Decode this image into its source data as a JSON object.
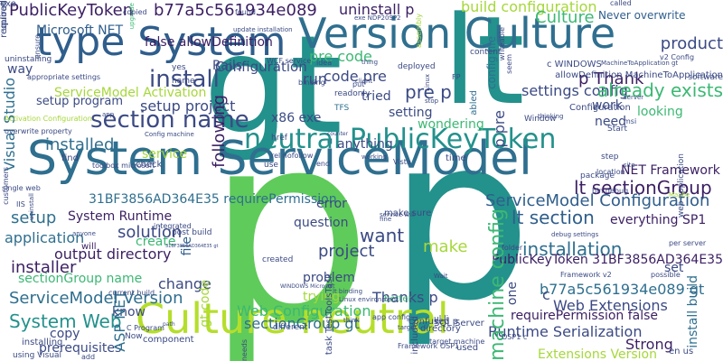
{
  "palette": {
    "background": "#ffffff",
    "dark": "#3b1f63",
    "blue": "#2f5e8c",
    "teal": "#23918c",
    "green": "#3cb874",
    "lime": "#a6d73b",
    "yellow": "#d8e219",
    "navy": "#2b3a72"
  },
  "words": [
    {
      "text": "p",
      "color": "#5fcb5a",
      "vertical": false
    },
    {
      "text": "p",
      "color": "#23918c",
      "vertical": false
    },
    {
      "text": "gt",
      "color": "#23918c",
      "vertical": false
    },
    {
      "text": "lt",
      "color": "#23918c",
      "vertical": false
    },
    {
      "text": "System ServiceModel",
      "color": "#2f6f8f",
      "vertical": false
    },
    {
      "text": "type System",
      "color": "#2f5e8c",
      "vertical": false
    },
    {
      "text": "Version Culture",
      "color": "#2f6f8f",
      "vertical": false
    },
    {
      "text": "Culture neutral",
      "color": "#b5de2b",
      "vertical": false
    },
    {
      "text": "neutral PublicKeyToken",
      "color": "#23918c",
      "vertical": false
    },
    {
      "text": "section name",
      "color": "#3b4a84",
      "vertical": false
    },
    {
      "text": "PublicKeyToken",
      "color": "#3b1f63",
      "vertical": false
    },
    {
      "text": "b77a5c561934e089",
      "color": "#3b1f63",
      "vertical": false
    },
    {
      "text": "uninstall p",
      "color": "#3b1f63",
      "vertical": false
    },
    {
      "text": "Microsoft NET",
      "color": "#2f5e8c",
      "vertical": false
    },
    {
      "text": "false allowDefinition",
      "color": "#3b1f63",
      "vertical": false
    },
    {
      "text": "build configuration",
      "color": "#a6d73b",
      "vertical": false
    },
    {
      "text": "Culture",
      "color": "#3cb874",
      "vertical": false
    },
    {
      "text": "Never overwrite",
      "color": "#2f5e8c",
      "vertical": false
    },
    {
      "text": "install",
      "color": "#3b4a84",
      "vertical": false
    },
    {
      "text": "Configuration",
      "color": "#3b4a84",
      "vertical": false
    },
    {
      "text": "pre code",
      "color": "#3cb874",
      "vertical": false
    },
    {
      "text": "code pre",
      "color": "#3b4a84",
      "vertical": false
    },
    {
      "text": "run",
      "color": "#3b4a84",
      "vertical": false
    },
    {
      "text": "pre p",
      "color": "#3b4a84",
      "vertical": false
    },
    {
      "text": "p Thank",
      "color": "#3b1f63",
      "vertical": false
    },
    {
      "text": "settings config",
      "color": "#3b4a84",
      "vertical": false
    },
    {
      "text": "setup project",
      "color": "#3b4a84",
      "vertical": false
    },
    {
      "text": "setup program",
      "color": "#3b4a84",
      "vertical": false
    },
    {
      "text": "ServiceModel Activation",
      "color": "#a6d73b",
      "vertical": false
    },
    {
      "text": "installed",
      "color": "#2f6f8f",
      "vertical": false
    },
    {
      "text": "service",
      "color": "#a6d73b",
      "vertical": false
    },
    {
      "text": "setting",
      "color": "#3b4a84",
      "vertical": false
    },
    {
      "text": "work",
      "color": "#3b4a84",
      "vertical": false
    },
    {
      "text": "looking",
      "color": "#3cb874",
      "vertical": false
    },
    {
      "text": "need",
      "color": "#3b4a84",
      "vertical": false
    },
    {
      "text": "wondering",
      "color": "#3cb874",
      "vertical": false
    },
    {
      "text": "NET Framework",
      "color": "#3b1f63",
      "vertical": false
    },
    {
      "text": "lt sectionGroup",
      "color": "#3b1f63",
      "vertical": false
    },
    {
      "text": "31BF3856AD364E35 requirePermission",
      "color": "#2f6f8f",
      "vertical": false
    },
    {
      "text": "ServiceModel Configuration",
      "color": "#2f5e8c",
      "vertical": false
    },
    {
      "text": "lt section",
      "color": "#2f5e8c",
      "vertical": false
    },
    {
      "text": "error",
      "color": "#3b4a84",
      "vertical": false
    },
    {
      "text": "setup",
      "color": "#2f6f8f",
      "vertical": false
    },
    {
      "text": "System Runtime",
      "color": "#3b1f63",
      "vertical": false
    },
    {
      "text": "everything SP1",
      "color": "#3b1f63",
      "vertical": false
    },
    {
      "text": "application",
      "color": "#2f6f8f",
      "vertical": false
    },
    {
      "text": "solution",
      "color": "#3b4a84",
      "vertical": false
    },
    {
      "text": "create",
      "color": "#3cb874",
      "vertical": false
    },
    {
      "text": "want",
      "color": "#3b4a84",
      "vertical": false
    },
    {
      "text": "make",
      "color": "#a6d73b",
      "vertical": false
    },
    {
      "text": "installation",
      "color": "#2f6f8f",
      "vertical": false
    },
    {
      "text": "output directory",
      "color": "#3b1f63",
      "vertical": false
    },
    {
      "text": "installer",
      "color": "#3b1f63",
      "vertical": false
    },
    {
      "text": "project",
      "color": "#3b4a84",
      "vertical": false
    },
    {
      "text": "sectionGroup name",
      "color": "#3cb874",
      "vertical": false
    },
    {
      "text": "PublicKeyToken 31BF3856AD364E35",
      "color": "#3b1f63",
      "vertical": false
    },
    {
      "text": "ServiceModel Version",
      "color": "#2f6f8f",
      "vertical": false
    },
    {
      "text": "b77a5c561934e089 gt",
      "color": "#2f6f8f",
      "vertical": false
    },
    {
      "text": "System Web",
      "color": "#23918c",
      "vertical": false
    },
    {
      "text": "change",
      "color": "#3b4a84",
      "vertical": false
    },
    {
      "text": "problem",
      "color": "#3b4a84",
      "vertical": false
    },
    {
      "text": "Thanks p",
      "color": "#3b4a84",
      "vertical": false
    },
    {
      "text": "trying",
      "color": "#a6d73b",
      "vertical": false
    },
    {
      "text": "Web Extensions",
      "color": "#3b4a84",
      "vertical": false
    },
    {
      "text": "Web Configuration",
      "color": "#3cb874",
      "vertical": false
    },
    {
      "text": "sectionGroup gt",
      "color": "#2f6f8f",
      "vertical": false
    },
    {
      "text": "requirePermission false",
      "color": "#3b1f63",
      "vertical": false
    },
    {
      "text": "Runtime Serialization",
      "color": "#3b4a84",
      "vertical": false
    },
    {
      "text": "Strong",
      "color": "#3b1f63",
      "vertical": false
    },
    {
      "text": "prerequisites",
      "color": "#3b4a84",
      "vertical": false
    },
    {
      "text": "Extensions Version",
      "color": "#a6d73b",
      "vertical": false
    },
    {
      "text": "copy",
      "color": "#3b4a84",
      "vertical": false
    },
    {
      "text": "component",
      "color": "#3b4a84",
      "vertical": false
    },
    {
      "text": "SQL Server",
      "color": "#3b4a84",
      "vertical": false
    },
    {
      "text": "know",
      "color": "#3b4a84",
      "vertical": false
    },
    {
      "text": "will",
      "color": "#3b1f63",
      "vertical": false
    },
    {
      "text": "find",
      "color": "#3b4a84",
      "vertical": false
    },
    {
      "text": "check",
      "color": "#3b4a84",
      "vertical": false
    },
    {
      "text": "question",
      "color": "#3b4a84",
      "vertical": false
    },
    {
      "text": "make sure",
      "color": "#3b4a84",
      "vertical": false
    },
    {
      "text": "anything",
      "color": "#3b4a84",
      "vertical": false
    },
    {
      "text": "x86 exe",
      "color": "#3b4a84",
      "vertical": false
    },
    {
      "text": "TFS",
      "color": "#2f6f8f",
      "vertical": false
    },
    {
      "text": "tried",
      "color": "#3b4a84",
      "vertical": false
    },
    {
      "text": "software",
      "color": "#3b4a84",
      "vertical": false
    },
    {
      "text": "better",
      "color": "#3cb874",
      "vertical": false
    },
    {
      "text": "Rails",
      "color": "#3b4a84",
      "vertical": false
    },
    {
      "text": "deployed",
      "color": "#3b4a84",
      "vertical": false
    },
    {
      "text": "Configuration",
      "color": "#3b4a84",
      "vertical": false
    },
    {
      "text": "product",
      "color": "#3b4a84",
      "vertical": false
    },
    {
      "text": "already exists",
      "color": "#3cb874",
      "vertical": false
    },
    {
      "text": "config file",
      "color": "#2f6f8f",
      "vertical": true
    },
    {
      "text": "Visual Studio",
      "color": "#2f6f8f",
      "vertical": true
    },
    {
      "text": "machine config",
      "color": "#3cb874",
      "vertical": true
    },
    {
      "text": "following",
      "color": "#3b1f63",
      "vertical": true
    },
    {
      "text": "file",
      "color": "#2f5e8c",
      "vertical": true
    },
    {
      "text": "gt code",
      "color": "#a6d73b",
      "vertical": true
    },
    {
      "text": "ASP NET",
      "color": "#2f6f8f",
      "vertical": true
    },
    {
      "text": "p pre",
      "color": "#3b4a84",
      "vertical": true
    },
    {
      "text": "one",
      "color": "#3b4a84",
      "vertical": true
    },
    {
      "text": "c",
      "color": "#3b4a84",
      "vertical": false
    },
    {
      "text": "way",
      "color": "#3b4a84",
      "vertical": false
    },
    {
      "text": "set",
      "color": "#3b4a84",
      "vertical": false
    },
    {
      "text": "install build",
      "color": "#2f6f8f",
      "vertical": true
    },
    {
      "text": "abled",
      "color": "#2f6f8f",
      "vertical": true
    },
    {
      "text": "included",
      "color": "#3b4a84",
      "vertical": true
    },
    {
      "text": "upgrade",
      "color": "#3cb874",
      "vertical": true
    },
    {
      "text": "assembly",
      "color": "#a6d73b",
      "vertical": true
    },
    {
      "text": "called",
      "color": "#3b4a84",
      "vertical": false
    },
    {
      "text": "exe NDP20SP2",
      "color": "#3b4a84",
      "vertical": false
    },
    {
      "text": "update installation",
      "color": "#3b4a84",
      "vertical": false
    },
    {
      "text": "service will",
      "color": "#3b4a84",
      "vertical": false
    },
    {
      "text": "debug settings",
      "color": "#3b4a84",
      "vertical": false
    },
    {
      "text": "MachineToApplication gt",
      "color": "#3b4a84",
      "vertical": false
    },
    {
      "text": "allowDefinition MachineToApplication",
      "color": "#3b4a84",
      "vertical": false
    },
    {
      "text": "appropriate settings",
      "color": "#3b4a84",
      "vertical": false
    },
    {
      "text": "Activation Configuration",
      "color": "#a6d73b",
      "vertical": false
    },
    {
      "text": "overwrite property",
      "color": "#3b4a84",
      "vertical": false
    },
    {
      "text": "Config machine",
      "color": "#3b4a84",
      "vertical": false
    },
    {
      "text": "Framework v2",
      "color": "#3b4a84",
      "vertical": false
    },
    {
      "text": "per server",
      "color": "#3b4a84",
      "vertical": false
    },
    {
      "text": "current build",
      "color": "#3b4a84",
      "vertical": false
    },
    {
      "text": "31BF3856AD364E35 gt",
      "color": "#3b4a84",
      "vertical": false
    },
    {
      "text": "lt binding",
      "color": "#3b4a84",
      "vertical": false
    },
    {
      "text": "WINDOWS Microsoft",
      "color": "#3b4a84",
      "vertical": false
    },
    {
      "text": "Linux environment",
      "color": "#3b4a84",
      "vertical": false
    },
    {
      "text": "c WINDOWS",
      "color": "#3b4a84",
      "vertical": false
    },
    {
      "text": "WCF service",
      "color": "#3b4a84",
      "vertical": false
    },
    {
      "text": "web application",
      "color": "#3b4a84",
      "vertical": true
    },
    {
      "text": "directory",
      "color": "#3b4a84",
      "vertical": false
    },
    {
      "text": "confused p",
      "color": "#3b4a84",
      "vertical": false
    },
    {
      "text": "possible",
      "color": "#3b4a84",
      "vertical": false
    },
    {
      "text": "app config",
      "color": "#3b4a84",
      "vertical": false
    },
    {
      "text": "uninstalling",
      "color": "#3b4a84",
      "vertical": false
    },
    {
      "text": "single web",
      "color": "#3b4a84",
      "vertical": false
    },
    {
      "text": "installing",
      "color": "#3b4a84",
      "vertical": false
    },
    {
      "text": "Now",
      "color": "#3b4a84",
      "vertical": false
    },
    {
      "text": "Maybe",
      "color": "#a6d73b",
      "vertical": false
    },
    {
      "text": "step",
      "color": "#3b4a84",
      "vertical": false
    },
    {
      "text": "site",
      "color": "#3b4a84",
      "vertical": false
    },
    {
      "text": "use",
      "color": "#3b4a84",
      "vertical": false
    },
    {
      "text": "end",
      "color": "#3b4a84",
      "vertical": false
    },
    {
      "text": "idea",
      "color": "#3b4a84",
      "vertical": false
    },
    {
      "text": "thing",
      "color": "#3b4a84",
      "vertical": false
    },
    {
      "text": "client",
      "color": "#3b4a84",
      "vertical": false
    },
    {
      "text": "binding",
      "color": "#3b4a84",
      "vertical": false
    },
    {
      "text": "put",
      "color": "#3b4a84",
      "vertical": false
    },
    {
      "text": "href",
      "color": "#3b4a84",
      "vertical": false
    },
    {
      "text": "counter",
      "color": "#3b4a84",
      "vertical": false
    },
    {
      "text": "time",
      "color": "#3b4a84",
      "vertical": false
    },
    {
      "text": "Vista",
      "color": "#3b4a84",
      "vertical": false
    },
    {
      "text": "post build",
      "color": "#3b4a84",
      "vertical": false
    },
    {
      "text": "created",
      "color": "#3b4a84",
      "vertical": false
    },
    {
      "text": "fine",
      "color": "#3b4a84",
      "vertical": false
    },
    {
      "text": "folder",
      "color": "#3b4a84",
      "vertical": false
    },
    {
      "text": "package",
      "color": "#3b4a84",
      "vertical": false
    },
    {
      "text": "location",
      "color": "#3b4a84",
      "vertical": false
    },
    {
      "text": "server",
      "color": "#3b4a84",
      "vertical": false
    },
    {
      "text": "msi",
      "color": "#3b4a84",
      "vertical": false
    },
    {
      "text": "Start",
      "color": "#3b4a84",
      "vertical": false
    },
    {
      "text": "Window",
      "color": "#3b4a84",
      "vertical": false
    },
    {
      "text": "thinking",
      "color": "#3b4a84",
      "vertical": false
    },
    {
      "text": "name",
      "color": "#3b4a84",
      "vertical": false
    },
    {
      "text": "yes",
      "color": "#3b4a84",
      "vertical": false
    },
    {
      "text": "rel nofollow",
      "color": "#3b4a84",
      "vertical": false
    },
    {
      "text": "path",
      "color": "#3b4a84",
      "vertical": false
    },
    {
      "text": "add",
      "color": "#3b4a84",
      "vertical": false
    },
    {
      "text": "used",
      "color": "#3b4a84",
      "vertical": false
    },
    {
      "text": "Framework OSP1",
      "color": "#3b4a84",
      "vertical": false
    },
    {
      "text": "target machine",
      "color": "#3b4a84",
      "vertical": false
    },
    {
      "text": "using Visual",
      "color": "#3b4a84",
      "vertical": false
    },
    {
      "text": "integrated",
      "color": "#3b4a84",
      "vertical": false
    },
    {
      "text": "working",
      "color": "#3b4a84",
      "vertical": false
    },
    {
      "text": "content",
      "color": "#3b4a84",
      "vertical": false
    },
    {
      "text": "v2 Config",
      "color": "#3b4a84",
      "vertical": false
    },
    {
      "text": "bin debug",
      "color": "#3b4a84",
      "vertical": false
    },
    {
      "text": "IIS",
      "color": "#3b4a84",
      "vertical": false
    },
    {
      "text": "app",
      "color": "#3b4a84",
      "vertical": false
    },
    {
      "text": "readonly",
      "color": "#3b4a84",
      "vertical": false
    },
    {
      "text": "different",
      "color": "#3b4a84",
      "vertical": false
    },
    {
      "text": "target",
      "color": "#3b4a84",
      "vertical": false
    },
    {
      "text": "ul li",
      "color": "#3b4a84",
      "vertical": false
    },
    {
      "text": "Wait",
      "color": "#3b4a84",
      "vertical": false
    },
    {
      "text": "FP",
      "color": "#3b4a84",
      "vertical": false
    },
    {
      "text": "en us",
      "color": "#3b4a84",
      "vertical": false
    },
    {
      "text": "OSP1 c",
      "color": "#3b4a84",
      "vertical": false
    },
    {
      "text": "task TestToolsTask",
      "color": "#3b4a84",
      "vertical": true
    },
    {
      "text": "customers",
      "color": "#3b4a84",
      "vertical": true
    },
    {
      "text": "uninstall",
      "color": "#3b4a84",
      "vertical": true
    },
    {
      "text": "Linux",
      "color": "#3b4a84",
      "vertical": true
    },
    {
      "text": "stop",
      "color": "#3b4a84",
      "vertical": false
    },
    {
      "text": "needs",
      "color": "#3b4a84",
      "vertical": true
    },
    {
      "text": "think",
      "color": "#3b4a84",
      "vertical": false
    },
    {
      "text": "copied",
      "color": "#3b4a84",
      "vertical": false
    },
    {
      "text": "toolbox microsoft",
      "color": "#3b4a84",
      "vertical": false
    },
    {
      "text": "anyone",
      "color": "#3b4a84",
      "vertical": false
    },
    {
      "text": "writeable",
      "color": "#3b4a84",
      "vertical": true
    },
    {
      "text": "seem",
      "color": "#3b4a84",
      "vertical": true
    },
    {
      "text": "found",
      "color": "#3b4a84",
      "vertical": false
    },
    {
      "text": "ensure",
      "color": "#3b4a84",
      "vertical": true
    },
    {
      "text": "C Program",
      "color": "#3b4a84",
      "vertical": false
    },
    {
      "text": "exe",
      "color": "#3b4a84",
      "vertical": false
    },
    {
      "text": "upload",
      "color": "#3b4a84",
      "vertical": true
    },
    {
      "text": "required",
      "color": "#3b4a84",
      "vertical": true
    }
  ]
}
